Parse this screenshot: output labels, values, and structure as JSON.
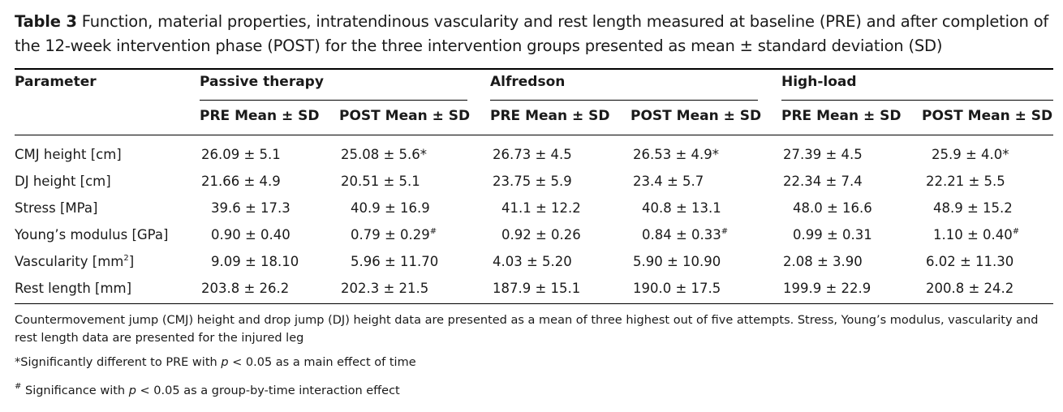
{
  "caption": {
    "label": "Table 3",
    "text": "Function, material properties, intratendinous vascularity and rest length measured at baseline (PRE) and after completion of the 12-week intervention phase (POST) for the three intervention groups presented as mean ± standard deviation (SD)"
  },
  "header": {
    "parameter": "Parameter",
    "groups": [
      "Passive therapy",
      "Alfredson",
      "High-load"
    ],
    "pre": "PRE Mean ± SD",
    "post": "POST Mean ± SD"
  },
  "rows": [
    {
      "param": "CMJ height [cm]",
      "v": [
        "26.09 ± 5.1",
        "25.08 ± 5.6*",
        "26.73 ± 4.5",
        "26.53 ± 4.9*",
        "27.39 ± 4.5",
        "25.9 ± 4.0*"
      ]
    },
    {
      "param": "DJ height [cm]",
      "v": [
        "21.66 ± 4.9",
        "20.51 ± 5.1",
        "23.75 ± 5.9",
        "23.4 ± 5.7",
        "22.34 ± 7.4",
        "22.21 ± 5.5"
      ]
    },
    {
      "param": "Stress [MPa]",
      "v": [
        "39.6 ± 17.3",
        "40.9 ± 16.9",
        "41.1 ± 12.2",
        "40.8 ± 13.1",
        "48.0 ± 16.6",
        "48.9 ± 15.2"
      ]
    },
    {
      "param": "Young’s modulus [GPa]",
      "v": [
        "0.90 ± 0.40",
        "0.79 ± 0.29",
        "0.92 ± 0.26",
        "0.84 ± 0.33",
        "0.99 ± 0.31",
        "1.10 ± 0.40"
      ],
      "sup": [
        "",
        "#",
        "",
        "#",
        "",
        "#"
      ]
    },
    {
      "param": "Vascularity [mm",
      "param_sup": "2",
      "param_end": "]",
      "v": [
        "9.09 ± 18.10",
        "5.96 ± 11.70",
        "4.03 ± 5.20",
        "5.90 ± 10.90",
        "2.08 ± 3.90",
        "6.02 ± 11.30"
      ]
    },
    {
      "param": "Rest length [mm]",
      "v": [
        "203.8 ± 26.2",
        "202.3 ± 21.5",
        "187.9 ± 15.1",
        "190.0 ± 17.5",
        "199.9 ± 22.9",
        "200.8 ± 24.2"
      ]
    }
  ],
  "footnotes": {
    "note1": "Countermovement jump (CMJ) height and drop jump (DJ) height data are presented as a mean of three highest out of five attempts. Stress, Young’s modulus, vascularity and rest length data are presented for the injured leg",
    "note2_pre": "*Significantly different to PRE with ",
    "note2_p": "p",
    "note2_post": " < 0.05 as a main effect of time",
    "note3_mark": "#",
    "note3_pre": " Significance with ",
    "note3_p": "p",
    "note3_post": " < 0.05 as a group-by-time interaction effect"
  }
}
